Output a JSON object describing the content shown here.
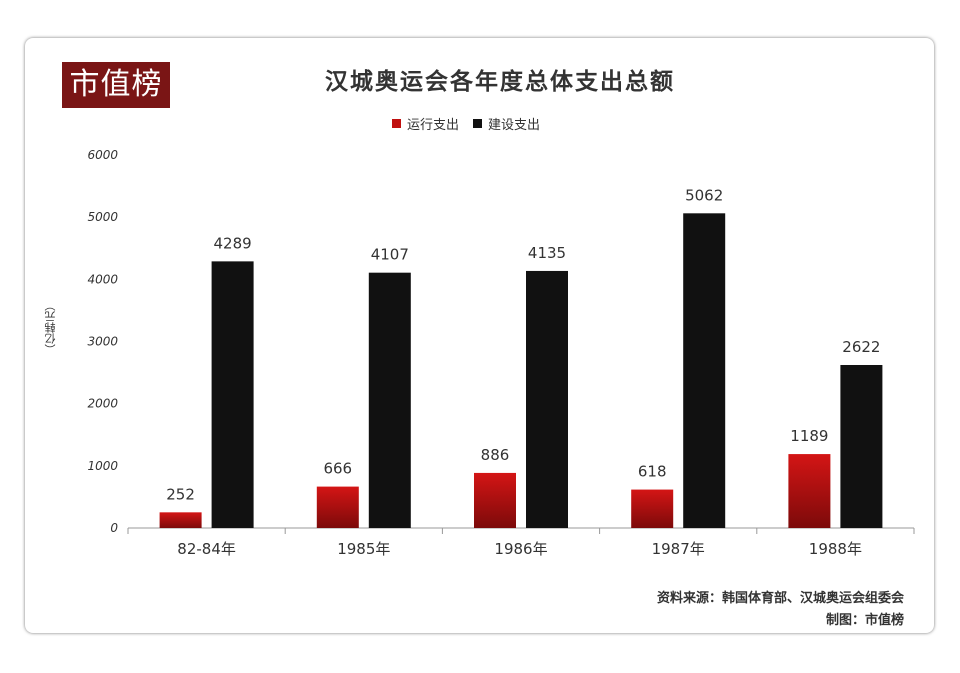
{
  "logo_text": "市值榜",
  "chart_data": {
    "type": "bar",
    "title": "汉城奥运会各年度总体支出总额",
    "ylabel": "（亿韩元）",
    "xlabel": "",
    "categories": [
      "82-84年",
      "1985年",
      "1986年",
      "1987年",
      "1988年"
    ],
    "series": [
      {
        "name": "运行支出",
        "values": [
          252,
          666,
          886,
          618,
          1189
        ],
        "color": "#c0100f"
      },
      {
        "name": "建设支出",
        "values": [
          4289,
          4107,
          4135,
          5062,
          2622
        ],
        "color": "#111111"
      }
    ],
    "ylim": [
      0,
      6000
    ],
    "yticks": [
      0,
      1000,
      2000,
      3000,
      4000,
      5000,
      6000
    ],
    "grid": false,
    "legend": "top-center",
    "data_labels": true
  },
  "source": {
    "line1": "资料来源：韩国体育部、汉城奥运会组委会",
    "line2": "制图：市值榜"
  }
}
